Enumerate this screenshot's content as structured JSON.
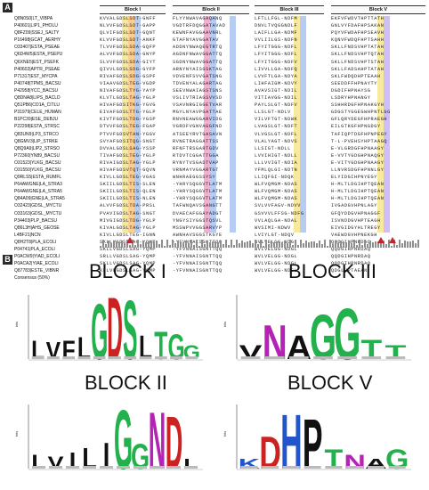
{
  "panel_labels": {
    "a": "A",
    "b": "B"
  },
  "alignment": {
    "blocks": [
      "Block I",
      "Block II",
      "Block III",
      "Block V"
    ],
    "sequence_ids": [
      "Q8N0S0|LT_VIBPA",
      "P40601|LIP1_PHOLU",
      "Q8FZ09|SSEJ_SALTY",
      "P16498|GCAT_AERHY",
      "O33407|ESTA_PSEAE",
      "Q6D4W5|ESTA_PSEPU",
      "Q6XNE5|EST_PSEFK",
      "P40602|APTR_PSEAE",
      "P71317|EST_MYCPA",
      "P40748|TPMS_BACSU",
      "P42958|YCC_BACSU",
      "Q8DNA8|LIPS_BACLD",
      "Q51PB6|CO1A_CITLU",
      "P31979|CELE_HUMAN",
      "B1PC39|ESE_DEBJU",
      "P22298|ESTA_STRSC",
      "Q83UN9|LP3_STRCO",
      "Q8GMV3|LIP_STRKE",
      "Q8Q9A9|LIP2_STRSO",
      "P72360|YN89_BACSU",
      "O31523|YLKG_BACSU",
      "O31550|YLKG_BACSU",
      "Q9RLS5|ESTA_RUMFL",
      "P64AWGNE|LA_STRA3",
      "P64AWGNE|LA_STRA5",
      "Q84A09|GNE|LA_STRA5",
      "O32423|GDSL_MYCTU",
      "O33163|GDSL_MYCTU",
      "P34403|PLP_BACSU",
      "Q86L3H|AHS_GEOSE",
      "L4BF21|NCN",
      "Q8H2T8|PLA_ECOLI",
      "P04741|PLA_ECOLI",
      "P0ACW9|YIAD_ECOLI",
      "P0ACA2|YIAE_ECOLI",
      "Q87783|ESTE_VIBNR"
    ],
    "consensus_label": "Consensus (50%)",
    "block_sequences": {
      "block1": [
        "KVVALGDSLSDT-GNFF",
        "NLVVFGDSLSDT-GAPP",
        "QLVIFGDSLSDT-GQNT",
        "KLVVFGDSLSDT-ANKF",
        "TLVVFGDSLSDA-GQFP",
        "ALVVFGDSLSDA-GNYP",
        "SLVVFGDSLSDA-GIYT",
        "QIVVLGDSLSDG-GYFP",
        "RIVAFGDSLSDG-GSPF",
        "VIAAVGDSLTEG-VGDP",
        "NIVAFGDSLTYG-YAYP",
        "KLVTLGDSLTAG-YGLP",
        "HIVAFGDSITKG-YGVG",
        "EIVAFGDSLTTG-YGLP",
        "KIVTFGDSLTDG-YGSP",
        "DTVVFGDSLTEG-FGAP",
        "PTVVFGDSVTAN-YGGV",
        "SVYAFGDSITQG-SNGT",
        "DVVALGDSLSAG-YSSP",
        "TIVAFGDSLTEG-YGLP",
        "RIVAIGDSLTAG-YGLP",
        "HIVAFGDSVTQT-GQVN",
        "KIVLLGDSLTEG-VGAS",
        "SKIILGDSLTIS-SLEN",
        "SKIILGDSLTIS-QLEN",
        "SKIILGDSLTIS-NLEN",
        "ALVVFGDSLTDA-PRSL",
        "PVAVIGDSLTAG-SNGT",
        "MIVGIGDSLTDG-YGLP",
        "KIVALGDSLTAG-YGLP",
        "KIVLLGDSLTEG-IGNN",
        "SKLLVGDSLSAG-YQMP",
        "SKLLVGDSLSAG-YQMP",
        "SRLLVGDSLSAG-YQMP",
        "SKLLVGDSLSAG-YQMP",
        "KLLVLGDSLSAG-YQMP"
      ],
      "block2": [
        "FLYYNWAVAGAQANQ",
        "VGDTRFDQGGATAVAD",
        "KEWNFAVGGAAVNRL",
        "GTAFNYAVGGATAV",
        "ADDNYNWAQEGTRTQ",
        "AGDNFNWAVGGATTQ",
        "SGDNYNWAVGGATTQ",
        "ARNYNYAISGSKTAG",
        "VDVENFSVVGATSNG",
        "TDVENYALAGARTAG",
        "SEEVNWAIAGSTSNS",
        "VSLIVTRIAGSVVSD",
        "VSAVNRGIGGETVAR",
        "MGYLNYAVPGATTAE",
        "RNVNEAWGGARVIDG",
        "VGRDFVGNVAGGFND",
        "ATSEEYRVTGASAVN",
        "RVNETRAGGATTSS",
        "RFNFTRSGARTGDV",
        "RTDVTCGGATTGGA",
        "RYNYTVSGADTVAP",
        "VRNMAYVGGARTGT",
        "WNHRAEGGSSYSY",
        "-YHRYSQGGVTLATM",
        "-YHRYSQGGVTLATM",
        "-YHRYSQGGVTLATM",
        "TAFWNQAVSGANGTT",
        "DVAECAFGGAYADGT",
        "YNGYSIYGGSTQSVL",
        "MSSWPVVGGSARVYP",
        "AWNHAVSGGSTKGYE",
        "-YFVNNAISGNTTQQ",
        "-YFVNNAISGNTTQQ",
        "-YFVNNAISGNTTQQ",
        "-YFVNNAISGNTTQQ",
        "-YFVNNAISGNTTQQ"
      ],
      "block3": [
        "LFTLLFGL-NDFM",
        "DNVLTVQGGNDLF",
        "LAIFLLGA-NDMF",
        "VVLIILGS-NDFN",
        "LFYITGGG-NDFL",
        "LFYITGGG-NDFL",
        "LFYITGGG-NDFV",
        "LIVVLLGA-NDFQ",
        "LVVFTLGA-NDYA",
        "LIHFAIGM-NDVY",
        "AVAVSIGT-NDIL",
        "VITIAVGG-NDIL",
        "PAYLSLGT-NDFV",
        "LLSLGT-NDLV",
        "VILVFTGT-NDWK",
        "LVAGSLGT-NDFT",
        "VLVGSLGT-NDFL",
        "VLALYAGT-NDVS",
        "LLSIGT-NDLL",
        "LVVIHIGT-NDLL",
        "LLLVVIGT-NDIA",
        "YFMLQLGI-NDTN",
        "LLIQFGI-NDQK",
        "WLFVQMGM-NDAS",
        "WLFVQMGM-NDAS",
        "WLFVQMGM-NDAS",
        "SVLVVFAGV-NDVV",
        "GSVVVLFFSG-NDFG",
        "VVLAQLGA-NDAL",
        "WVSIMI-NDWV",
        "LVIYLGT-NDQV",
        "WVLVELGG-NDGL",
        "WVLVELGG-NDGL",
        "WVLVELGG-NDGL",
        "WVLVELGG-NDGL",
        "WVLVELGG-NDGL"
      ],
      "block5": [
        "EKFVFWDVTHPTTATH",
        "GNLVYFDAFHPSAKAN",
        "PQYVFWDAFHPSEAVH",
        "KQNVFWDQFHPTSAHH",
        "SKLLFNDSVHPTATAH",
        "SKLLFNDSVHPTQTAH",
        "SKLLFNDSVHPTSTAH",
        "SKLLFADSAHPTATAH",
        "SKLFWDQDHPTEAAH",
        "SEEDDFFHPNAYTY",
        "DGDIFHPNAYSG",
        "LSDRYHPNANGY",
        "SSHHRDGFHPNAKGYH",
        "GDGSTYGGEGWHPNTLGG",
        "GFLQRYDEGFHPRAEGH",
        "EILGTKGFHPNGDGY",
        "TAFIQPTDGFHPNPEGY",
        "T-L-PVEHSYHPTAAGQ",
        "E-VLGRDGFHPNAAGY",
        "E-VVTYGDGHPNAQGY",
        "E-VITYGDGHPNAAGY",
        "LLNVRSDGFHPNNLGY",
        "ELYIDGIHPNYEGY",
        "H-MLTLDGIHPTQEAN",
        "H-MLTLDGIHPTQEAN",
        "H-MLTLDGIHPTQEAN",
        "IVGADGVHPNLAGY",
        "GFQYDDGVHPNAGGF",
        "ISVNDDGVHPTEAGH",
        "EIVGIDGYHLTREGY",
        "VAEWDGVHPNEKGH",
        "QQDGIHPNRDAQ",
        "QQDGIHPNRDAQ",
        "QQDGIHPNRDAQ",
        "QQDGIHPNRDAQ",
        "QDGLHPTAEAN"
      ]
    }
  },
  "logos": [
    {
      "title": "BLOCK I",
      "axis": "bits",
      "letters": [
        "L",
        "V",
        "F",
        "L",
        "G",
        "D",
        "S",
        "L",
        "T",
        "G",
        "G"
      ],
      "heights": [
        0.3,
        0.28,
        0.3,
        0.35,
        0.9,
        1.0,
        0.95,
        0.38,
        0.45,
        0.4,
        0.22
      ],
      "colors": [
        "#111",
        "#111",
        "#111",
        "#111",
        "#22b14c",
        "#cc2222",
        "#22b14c",
        "#111",
        "#22b14c",
        "#22b14c",
        "#22b14c"
      ]
    },
    {
      "title": "BLOCK III",
      "axis": "bits",
      "letters": [
        "V",
        "N",
        "A",
        "G",
        "G",
        "T",
        "T"
      ],
      "heights": [
        0.22,
        0.55,
        0.38,
        0.72,
        0.82,
        0.32,
        0.22
      ],
      "colors": [
        "#111",
        "#b522b5",
        "#111",
        "#22b14c",
        "#22b14c",
        "#22b14c",
        "#22b14c"
      ]
    },
    {
      "title": "BLOCK II",
      "axis": "bits",
      "letters": [
        "L",
        "V",
        "I",
        "L",
        "I",
        "G",
        "G",
        "N",
        "D",
        "L"
      ],
      "heights": [
        0.22,
        0.2,
        0.26,
        0.34,
        0.42,
        0.95,
        0.4,
        0.92,
        0.85,
        0.16
      ],
      "colors": [
        "#111",
        "#111",
        "#111",
        "#111",
        "#111",
        "#22b14c",
        "#22b14c",
        "#b522b5",
        "#cc2222",
        "#111"
      ]
    },
    {
      "title": "BLOCK V",
      "axis": "bits",
      "letters": [
        "K",
        "D",
        "H",
        "P",
        "T",
        "N",
        "A",
        "G"
      ],
      "heights": [
        0.16,
        0.52,
        0.88,
        0.8,
        0.32,
        0.22,
        0.16,
        0.32
      ],
      "colors": [
        "#2255cc",
        "#cc2222",
        "#2255cc",
        "#111",
        "#22b14c",
        "#b522b5",
        "#111",
        "#22b14c"
      ]
    }
  ]
}
